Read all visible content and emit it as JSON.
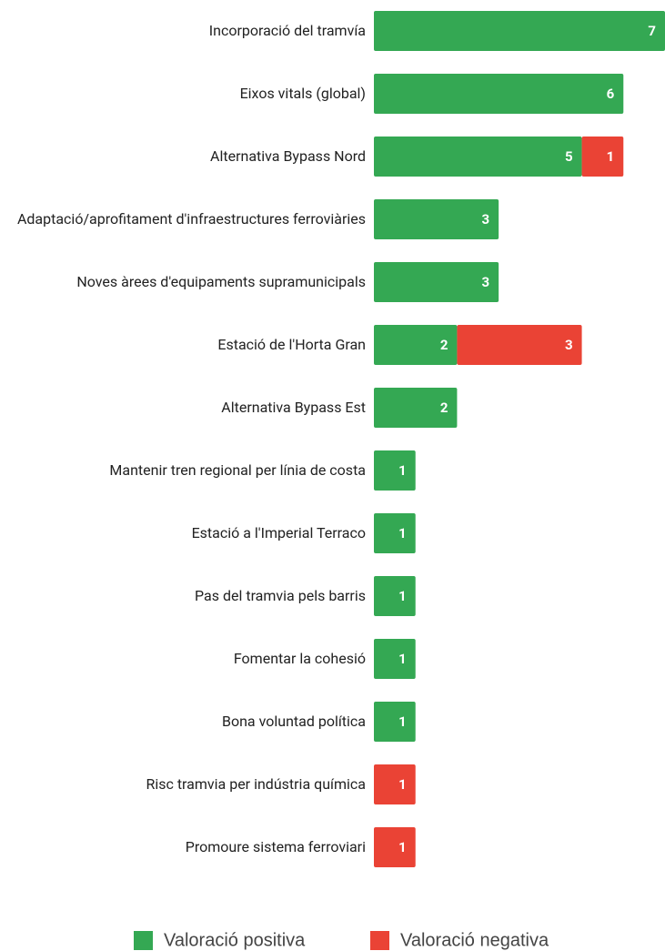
{
  "chart_data": {
    "type": "stacked-bar-horizontal",
    "categories": [
      "Incorporació del tramvía",
      "Eixos vitals (global)",
      "Alternativa Bypass Nord",
      "Adaptació/aprofitament d'infraestructures ferroviàries",
      "Noves àrees d'equipaments supramunicipals",
      "Estació de l'Horta Gran",
      "Alternativa Bypass Est",
      "Mantenir tren regional per línia de costa",
      "Estació a l'Imperial Terraco",
      "Pas del tramvia pels barris",
      "Fomentar la cohesió",
      "Bona voluntad política",
      "Risc tramvia per indústria química",
      "Promoure sistema ferroviari"
    ],
    "series": [
      {
        "name": "Valoració positiva",
        "color": "#34a853",
        "values": [
          7,
          6,
          5,
          3,
          3,
          2,
          2,
          1,
          1,
          1,
          1,
          1,
          0,
          0
        ]
      },
      {
        "name": "Valoració negativa",
        "color": "#ea4335",
        "values": [
          0,
          0,
          1,
          0,
          0,
          3,
          0,
          0,
          0,
          0,
          0,
          0,
          1,
          1
        ]
      }
    ],
    "legend": "bottom"
  }
}
